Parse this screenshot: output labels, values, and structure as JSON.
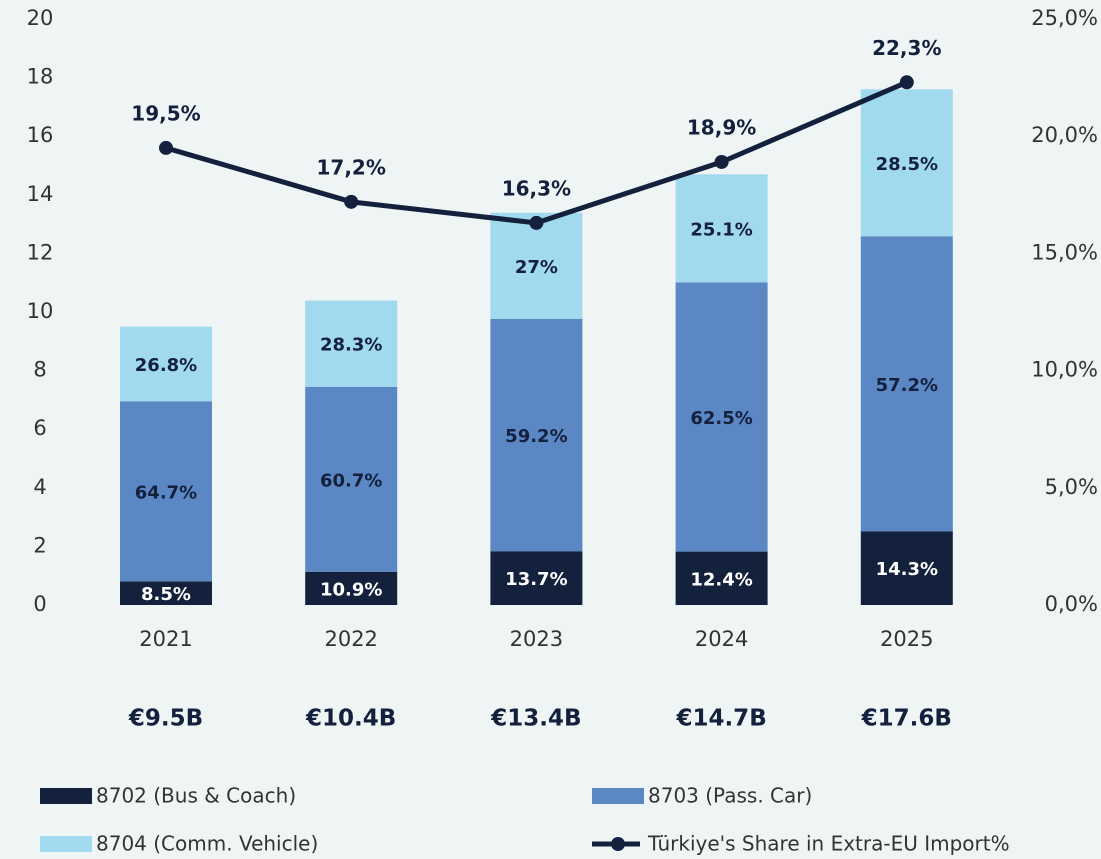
{
  "chart_data": {
    "type": "bar",
    "categories": [
      "2021",
      "2022",
      "2023",
      "2024",
      "2025"
    ],
    "totals": [
      9.5,
      10.4,
      13.4,
      14.7,
      17.6
    ],
    "total_labels": [
      "€9.5B",
      "€10.4B",
      "€13.4B",
      "€14.7B",
      "€17.6B"
    ],
    "series": [
      {
        "name": "8702 (Bus & Coach)",
        "color": "#14213d",
        "label_color": "#ffffff",
        "values": [
          8.5,
          10.9,
          13.7,
          12.4,
          14.3
        ],
        "value_labels": [
          "8.5%",
          "10.9%",
          "13.7%",
          "12.4%",
          "14.3%"
        ]
      },
      {
        "name": "8703 (Pass. Car)",
        "color": "#5b87c5",
        "label_color": "#14213d",
        "values": [
          64.7,
          60.7,
          59.2,
          62.5,
          57.2
        ],
        "value_labels": [
          "64.7%",
          "60.7%",
          "59.2%",
          "62.5%",
          "57.2%"
        ]
      },
      {
        "name": "8704 (Comm. Vehicle)",
        "color": "#a1d9ee",
        "label_color": "#14213d",
        "values": [
          26.8,
          28.3,
          27,
          25.1,
          28.5
        ],
        "value_labels": [
          "26.8%",
          "28.3%",
          "27%",
          "25.1%",
          "28.5%"
        ]
      },
      {
        "name": "Türkiye's Share in Extra-EU Import%",
        "type": "line",
        "axis": "y2",
        "color": "#14213d",
        "values": [
          19.5,
          17.2,
          16.3,
          18.9,
          22.3
        ],
        "value_labels": [
          "19,5%",
          "17,2%",
          "16,3%",
          "18,9%",
          "22,3%"
        ]
      }
    ],
    "ylim": [
      0,
      20
    ],
    "yticks": [
      0,
      2,
      4,
      6,
      8,
      10,
      12,
      14,
      16,
      18,
      20
    ],
    "y2lim": [
      0,
      25
    ],
    "y2ticks": [
      {
        "value": 0,
        "label": "0,0%"
      },
      {
        "value": 5,
        "label": "5,0%"
      },
      {
        "value": 10,
        "label": "10,0%"
      },
      {
        "value": 15,
        "label": "15,0%"
      },
      {
        "value": 20,
        "label": "20,0%"
      },
      {
        "value": 25,
        "label": "25,0%"
      }
    ]
  }
}
